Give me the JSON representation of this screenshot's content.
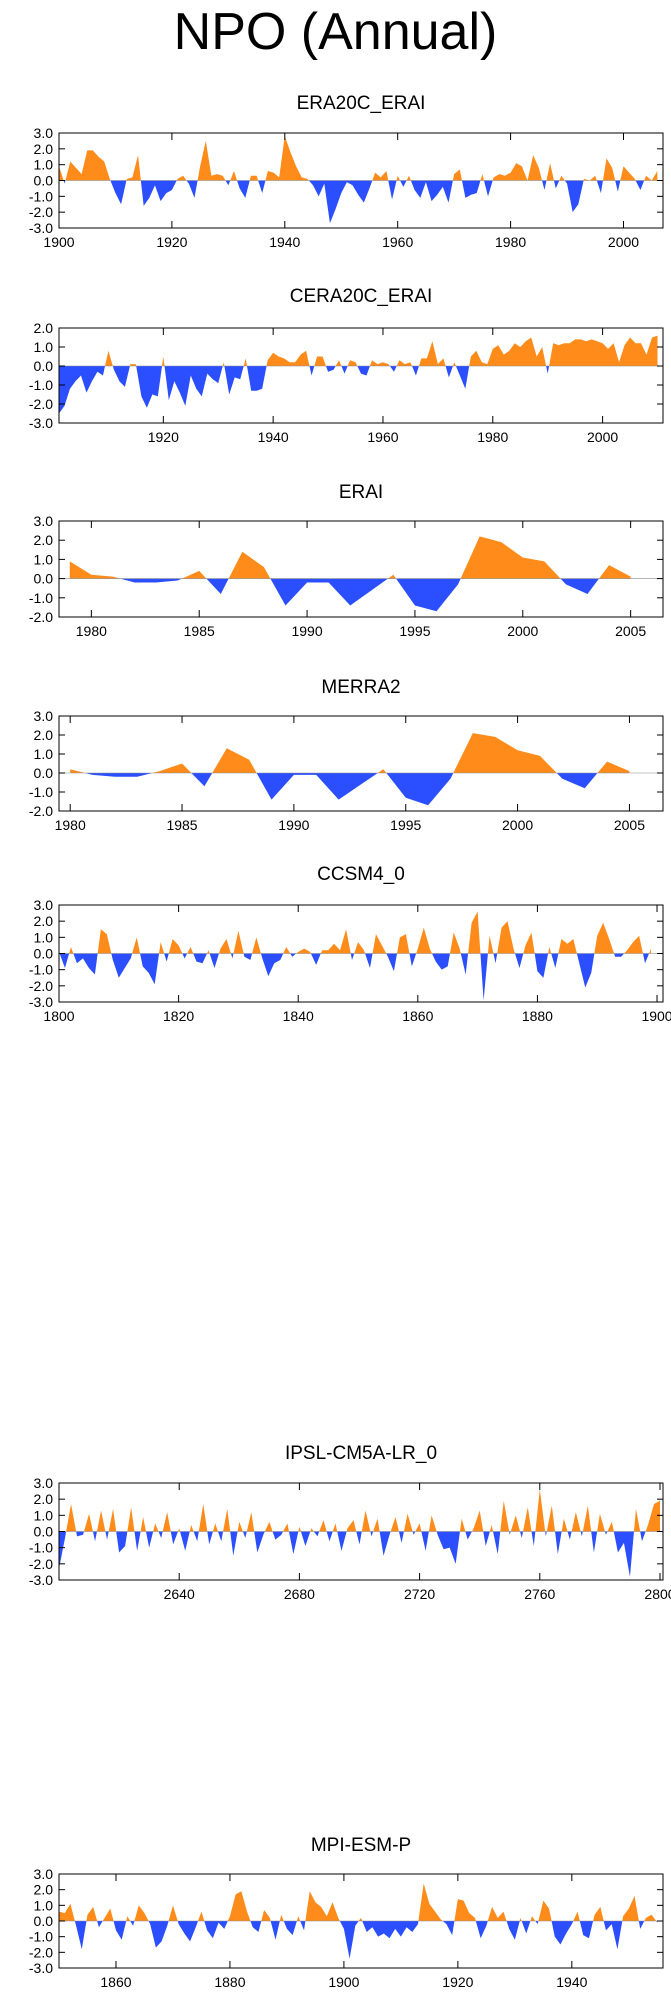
{
  "title": "NPO (Annual)",
  "colors": {
    "positive": "#ff8c1a",
    "negative": "#2b4fff",
    "axis": "#000000"
  },
  "chart_data": [
    {
      "type": "area",
      "title": "ERA20C_ERAI",
      "ylim": [
        -3.0,
        3.0
      ],
      "yticks": [
        "3.0",
        "2.0",
        "1.0",
        "0.0",
        "-1.0",
        "-2.0",
        "-3.0"
      ],
      "xlim": [
        1900,
        2007
      ],
      "xticks": [
        1900,
        1920,
        1940,
        1960,
        1980,
        2000
      ],
      "x": [
        1900,
        1901,
        1902,
        1903,
        1904,
        1905,
        1906,
        1907,
        1908,
        1909,
        1910,
        1911,
        1912,
        1913,
        1914,
        1915,
        1916,
        1917,
        1918,
        1919,
        1920,
        1921,
        1922,
        1923,
        1924,
        1925,
        1926,
        1927,
        1928,
        1929,
        1930,
        1931,
        1932,
        1933,
        1934,
        1935,
        1936,
        1937,
        1938,
        1939,
        1940,
        1941,
        1942,
        1943,
        1944,
        1945,
        1946,
        1947,
        1948,
        1949,
        1950,
        1951,
        1952,
        1953,
        1954,
        1955,
        1956,
        1957,
        1958,
        1959,
        1960,
        1961,
        1962,
        1963,
        1964,
        1965,
        1966,
        1967,
        1968,
        1969,
        1970,
        1971,
        1972,
        1973,
        1974,
        1975,
        1976,
        1977,
        1978,
        1979,
        1980,
        1981,
        1982,
        1983,
        1984,
        1985,
        1986,
        1987,
        1988,
        1989,
        1990,
        1991,
        1992,
        1993,
        1994,
        1995,
        1996,
        1997,
        1998,
        1999,
        2000,
        2001,
        2002,
        2003,
        2004,
        2005,
        2006
      ],
      "values": [
        0.9,
        -0.2,
        1.2,
        0.8,
        0.4,
        1.9,
        1.9,
        1.5,
        1.2,
        0.1,
        -0.8,
        -1.5,
        0.1,
        0.2,
        1.6,
        -1.6,
        -1.1,
        -0.3,
        -1.3,
        -0.8,
        -0.6,
        0.1,
        0.3,
        -0.2,
        -1.1,
        0.9,
        2.5,
        0.3,
        0.4,
        0.3,
        -0.3,
        0.6,
        -0.5,
        -1.1,
        0.3,
        0.3,
        -0.8,
        0.6,
        0.5,
        0.2,
        2.8,
        1.8,
        0.9,
        0.2,
        0.1,
        -0.3,
        -1.0,
        -0.2,
        -2.7,
        -1.8,
        -0.8,
        -0.1,
        -0.3,
        -0.9,
        -1.4,
        -0.5,
        0.5,
        0.2,
        0.6,
        -1.2,
        0.3,
        -0.4,
        0.3,
        -0.6,
        -1.1,
        -0.1,
        -1.3,
        -0.9,
        -0.4,
        -1.4,
        0.4,
        0.7,
        -1.1,
        -0.9,
        -0.8,
        0.4,
        -1.0,
        0.2,
        0.4,
        0.3,
        0.5,
        1.1,
        0.9,
        0.0,
        1.6,
        0.8,
        -0.6,
        1.1,
        -0.5,
        0.3,
        -0.2,
        -2.0,
        -1.5,
        0.1,
        0.0,
        0.3,
        -0.8,
        1.4,
        0.8,
        -0.7,
        0.9,
        0.5,
        0.1,
        -0.6,
        0.3,
        0.0,
        0.6
      ]
    },
    {
      "type": "area",
      "title": "CERA20C_ERAI",
      "ylim": [
        -3.0,
        2.0
      ],
      "yticks": [
        "2.0",
        "1.0",
        "0.0",
        "-1.0",
        "-2.0",
        "-3.0"
      ],
      "xlim": [
        1901,
        2011
      ],
      "xticks": [
        1920,
        1940,
        1960,
        1980,
        2000
      ],
      "x": [
        1901,
        1902,
        1903,
        1904,
        1905,
        1906,
        1907,
        1908,
        1909,
        1910,
        1911,
        1912,
        1913,
        1914,
        1915,
        1916,
        1917,
        1918,
        1919,
        1920,
        1921,
        1922,
        1923,
        1924,
        1925,
        1926,
        1927,
        1928,
        1929,
        1930,
        1931,
        1932,
        1933,
        1934,
        1935,
        1936,
        1937,
        1938,
        1939,
        1940,
        1941,
        1942,
        1943,
        1944,
        1945,
        1946,
        1947,
        1948,
        1949,
        1950,
        1951,
        1952,
        1953,
        1954,
        1955,
        1956,
        1957,
        1958,
        1959,
        1960,
        1961,
        1962,
        1963,
        1964,
        1965,
        1966,
        1967,
        1968,
        1969,
        1970,
        1971,
        1972,
        1973,
        1974,
        1975,
        1976,
        1977,
        1978,
        1979,
        1980,
        1981,
        1982,
        1983,
        1984,
        1985,
        1986,
        1987,
        1988,
        1989,
        1990,
        1991,
        1992,
        1993,
        1994,
        1995,
        1996,
        1997,
        1998,
        1999,
        2000,
        2001,
        2002,
        2003,
        2004,
        2005,
        2006,
        2007,
        2008,
        2009,
        2010
      ],
      "values": [
        -2.5,
        -2.1,
        -1.2,
        -0.8,
        -0.5,
        -1.4,
        -0.8,
        -0.3,
        -0.5,
        0.8,
        -0.2,
        -0.8,
        -1.1,
        0.1,
        0.1,
        -1.6,
        -2.2,
        -1.5,
        -1.6,
        0.5,
        -1.8,
        -0.8,
        -1.4,
        -2.1,
        -0.5,
        -1.2,
        -1.6,
        -0.4,
        -0.7,
        -0.9,
        0.2,
        -1.5,
        -0.6,
        -0.7,
        0.4,
        -1.3,
        -1.3,
        -1.2,
        0.3,
        0.7,
        0.5,
        0.4,
        0.2,
        0.2,
        0.6,
        0.8,
        -0.5,
        0.5,
        0.5,
        -0.3,
        -0.2,
        0.3,
        -0.4,
        0.3,
        0.2,
        -0.4,
        -0.5,
        0.3,
        0.1,
        0.2,
        0.1,
        -0.3,
        0.3,
        0.1,
        0.2,
        -0.5,
        0.4,
        0.4,
        1.3,
        0.1,
        0.4,
        -0.6,
        0.2,
        -0.5,
        -1.2,
        0.5,
        0.8,
        0.2,
        0.1,
        0.9,
        1.1,
        0.6,
        0.8,
        1.2,
        1.0,
        1.3,
        1.5,
        0.5,
        1.0,
        -0.4,
        1.2,
        1.1,
        1.2,
        1.2,
        1.4,
        1.4,
        1.3,
        1.4,
        1.3,
        1.2,
        0.9,
        1.2,
        0.2,
        1.1,
        1.5,
        1.2,
        1.2,
        0.6,
        1.5,
        1.6
      ]
    },
    {
      "type": "area",
      "title": "ERAI",
      "ylim": [
        -2.0,
        3.0
      ],
      "yticks": [
        "3.0",
        "2.0",
        "1.0",
        "0.0",
        "-1.0",
        "-2.0"
      ],
      "xlim": [
        1978.5,
        2006.5
      ],
      "xticks": [
        1980,
        1985,
        1990,
        1995,
        2000,
        2005
      ],
      "x": [
        1979,
        1980,
        1981,
        1982,
        1983,
        1984,
        1985,
        1986,
        1987,
        1988,
        1989,
        1990,
        1991,
        1992,
        1993,
        1994,
        1995,
        1996,
        1997,
        1998,
        1999,
        2000,
        2001,
        2002,
        2003,
        2004,
        2005
      ],
      "values": [
        0.9,
        0.2,
        0.1,
        -0.2,
        -0.2,
        -0.1,
        0.4,
        -0.8,
        1.4,
        0.6,
        -1.4,
        -0.2,
        -0.2,
        -1.4,
        -0.6,
        0.2,
        -1.4,
        -1.7,
        -0.3,
        2.2,
        1.9,
        1.1,
        0.9,
        -0.3,
        -0.8,
        0.7,
        0.1
      ]
    },
    {
      "type": "area",
      "title": "MERRA2",
      "ylim": [
        -2.0,
        3.0
      ],
      "yticks": [
        "3.0",
        "2.0",
        "1.0",
        "0.0",
        "-1.0",
        "-2.0"
      ],
      "xlim": [
        1979.5,
        2006.5
      ],
      "xticks": [
        1980,
        1985,
        1990,
        1995,
        2000,
        2005
      ],
      "x": [
        1980,
        1981,
        1982,
        1983,
        1984,
        1985,
        1986,
        1987,
        1988,
        1989,
        1990,
        1991,
        1992,
        1993,
        1994,
        1995,
        1996,
        1997,
        1998,
        1999,
        2000,
        2001,
        2002,
        2003,
        2004,
        2005
      ],
      "values": [
        0.2,
        -0.1,
        -0.2,
        -0.2,
        0.1,
        0.5,
        -0.7,
        1.3,
        0.7,
        -1.4,
        -0.1,
        -0.1,
        -1.4,
        -0.6,
        0.2,
        -1.3,
        -1.7,
        -0.3,
        2.1,
        1.9,
        1.2,
        0.9,
        -0.3,
        -0.8,
        0.6,
        0.1
      ]
    },
    {
      "type": "area",
      "title": "CCSM4_0",
      "ylim": [
        -3.0,
        3.0
      ],
      "yticks": [
        "3.0",
        "2.0",
        "1.0",
        "0.0",
        "-1.0",
        "-2.0",
        "-3.0"
      ],
      "xlim": [
        1800,
        1901
      ],
      "xticks": [
        1800,
        1820,
        1840,
        1860,
        1880,
        1900
      ],
      "x": [
        1800,
        1801,
        1802,
        1803,
        1804,
        1805,
        1806,
        1807,
        1808,
        1809,
        1810,
        1811,
        1812,
        1813,
        1814,
        1815,
        1816,
        1817,
        1818,
        1819,
        1820,
        1821,
        1822,
        1823,
        1824,
        1825,
        1826,
        1827,
        1828,
        1829,
        1830,
        1831,
        1832,
        1833,
        1834,
        1835,
        1836,
        1837,
        1838,
        1839,
        1840,
        1841,
        1842,
        1843,
        1844,
        1845,
        1846,
        1847,
        1848,
        1849,
        1850,
        1851,
        1852,
        1853,
        1854,
        1855,
        1856,
        1857,
        1858,
        1859,
        1860,
        1861,
        1862,
        1863,
        1864,
        1865,
        1866,
        1867,
        1868,
        1869,
        1870,
        1871,
        1872,
        1873,
        1874,
        1875,
        1876,
        1877,
        1878,
        1879,
        1880,
        1881,
        1882,
        1883,
        1884,
        1885,
        1886,
        1887,
        1888,
        1889,
        1890,
        1891,
        1892,
        1893,
        1894,
        1895,
        1896,
        1897,
        1898,
        1899
      ],
      "values": [
        0.1,
        -0.9,
        0.4,
        -0.6,
        -0.3,
        -0.9,
        -1.3,
        1.5,
        1.2,
        -0.4,
        -1.5,
        -0.9,
        -0.3,
        1.0,
        -0.8,
        -1.2,
        -1.9,
        0.7,
        -0.5,
        0.9,
        0.5,
        -0.3,
        0.4,
        -0.5,
        -0.6,
        0.2,
        -0.9,
        0.3,
        0.9,
        -0.3,
        1.4,
        -0.2,
        -0.4,
        1.0,
        -0.3,
        -1.4,
        -0.6,
        -0.4,
        0.4,
        -0.2,
        0.1,
        0.3,
        0.1,
        -0.7,
        0.2,
        0.2,
        0.6,
        0.2,
        1.5,
        -0.4,
        0.7,
        0.2,
        -0.9,
        1.2,
        0.5,
        -0.2,
        -1.1,
        1.0,
        1.2,
        -0.8,
        0.3,
        1.6,
        0.3,
        -0.5,
        -1.0,
        -0.8,
        1.3,
        0.3,
        -1.3,
        1.9,
        2.6,
        -2.9,
        1.1,
        -0.6,
        1.6,
        2.0,
        0.3,
        -0.9,
        0.5,
        1.3,
        -1.1,
        -1.5,
        0.4,
        -0.9,
        0.9,
        0.6,
        0.9,
        -0.6,
        -2.1,
        -1.2,
        1.1,
        1.9,
        0.9,
        -0.2,
        -0.2,
        0.2,
        0.7,
        1.1,
        -0.6,
        0.3
      ]
    },
    {
      "type": "area",
      "title": "IPSL-CM5A-LR_0",
      "ylim": [
        -3.0,
        3.0
      ],
      "yticks": [
        "3.0",
        "2.0",
        "1.0",
        "0.0",
        "-1.0",
        "-2.0",
        "-3.0"
      ],
      "xlim": [
        2600,
        2801
      ],
      "xticks": [
        2640,
        2680,
        2720,
        2760,
        2800
      ],
      "x": [
        2600,
        2602,
        2604,
        2606,
        2608,
        2610,
        2612,
        2614,
        2616,
        2618,
        2620,
        2622,
        2624,
        2626,
        2628,
        2630,
        2632,
        2634,
        2636,
        2638,
        2640,
        2642,
        2644,
        2646,
        2648,
        2650,
        2652,
        2654,
        2656,
        2658,
        2660,
        2662,
        2664,
        2666,
        2668,
        2670,
        2672,
        2674,
        2676,
        2678,
        2680,
        2682,
        2684,
        2686,
        2688,
        2690,
        2692,
        2694,
        2696,
        2698,
        2700,
        2702,
        2704,
        2706,
        2708,
        2710,
        2712,
        2714,
        2716,
        2718,
        2720,
        2722,
        2724,
        2726,
        2728,
        2730,
        2732,
        2734,
        2736,
        2738,
        2740,
        2742,
        2744,
        2746,
        2748,
        2750,
        2752,
        2754,
        2756,
        2758,
        2760,
        2762,
        2764,
        2766,
        2768,
        2770,
        2772,
        2774,
        2776,
        2778,
        2780,
        2782,
        2784,
        2786,
        2788,
        2790,
        2792,
        2794,
        2796,
        2798,
        2800
      ],
      "values": [
        -2.3,
        -0.4,
        1.7,
        -0.3,
        -0.2,
        1.1,
        -0.6,
        1.3,
        -0.5,
        1.4,
        -1.3,
        -0.9,
        1.5,
        -1.2,
        0.9,
        -1.0,
        0.5,
        -0.4,
        1.2,
        -0.8,
        0.2,
        -1.2,
        0.4,
        -0.6,
        1.7,
        -0.8,
        0.5,
        -0.6,
        1.4,
        -1.5,
        0.6,
        -0.4,
        1.2,
        -1.3,
        -0.2,
        0.6,
        -0.5,
        -0.2,
        0.5,
        -1.4,
        0.3,
        -0.9,
        0.2,
        -0.3,
        0.7,
        -0.6,
        0.5,
        -1.2,
        0.2,
        0.7,
        -0.8,
        1.3,
        -0.3,
        0.8,
        -1.5,
        -0.2,
        0.9,
        -0.7,
        1.1,
        -0.2,
        0.5,
        -1.2,
        1.0,
        -0.2,
        -1.1,
        -1.0,
        -2.0,
        0.8,
        -0.5,
        0.2,
        1.3,
        -0.9,
        0.4,
        -1.4,
        1.9,
        -0.2,
        1.0,
        -0.4,
        1.5,
        -0.9,
        2.6,
        -0.3,
        1.6,
        -1.4,
        0.8,
        -0.5,
        1.2,
        -0.3,
        1.6,
        -1.3,
        1.1,
        -0.2,
        0.6,
        -1.3,
        -0.7,
        -2.8,
        1.4,
        -0.6,
        0.4,
        1.7,
        1.9
      ]
    },
    {
      "type": "area",
      "title": "MPI-ESM-P",
      "ylim": [
        -3.0,
        3.0
      ],
      "yticks": [
        "3.0",
        "2.0",
        "1.0",
        "0.0",
        "-1.0",
        "-2.0",
        "-3.0"
      ],
      "xlim": [
        1850,
        1956
      ],
      "xticks": [
        1860,
        1880,
        1900,
        1920,
        1940
      ],
      "x": [
        1850,
        1851,
        1852,
        1853,
        1854,
        1855,
        1856,
        1857,
        1858,
        1859,
        1860,
        1861,
        1862,
        1863,
        1864,
        1865,
        1866,
        1867,
        1868,
        1869,
        1870,
        1871,
        1872,
        1873,
        1874,
        1875,
        1876,
        1877,
        1878,
        1879,
        1880,
        1881,
        1882,
        1883,
        1884,
        1885,
        1886,
        1887,
        1888,
        1889,
        1890,
        1891,
        1892,
        1893,
        1894,
        1895,
        1896,
        1897,
        1898,
        1899,
        1900,
        1901,
        1902,
        1903,
        1904,
        1905,
        1906,
        1907,
        1908,
        1909,
        1910,
        1911,
        1912,
        1913,
        1914,
        1915,
        1916,
        1917,
        1918,
        1919,
        1920,
        1921,
        1922,
        1923,
        1924,
        1925,
        1926,
        1927,
        1928,
        1929,
        1930,
        1931,
        1932,
        1933,
        1934,
        1935,
        1936,
        1937,
        1938,
        1939,
        1940,
        1941,
        1942,
        1943,
        1944,
        1945,
        1946,
        1947,
        1948,
        1949,
        1950,
        1951,
        1952,
        1953,
        1954,
        1955
      ],
      "values": [
        0.6,
        0.5,
        1.1,
        -0.3,
        -1.8,
        0.4,
        0.9,
        -0.4,
        0.2,
        0.8,
        -0.6,
        -1.2,
        0.3,
        -0.3,
        1.0,
        0.5,
        -0.2,
        -1.7,
        -1.3,
        -0.3,
        1.0,
        -0.2,
        -0.8,
        -1.3,
        -0.4,
        0.6,
        -0.6,
        -1.1,
        -0.1,
        -0.5,
        0.3,
        1.7,
        1.9,
        0.6,
        -0.4,
        -0.7,
        0.7,
        0.2,
        -1.2,
        0.4,
        -0.5,
        -0.9,
        0.3,
        -0.6,
        1.9,
        1.2,
        0.9,
        0.3,
        1.2,
        0.2,
        -0.5,
        -2.4,
        -0.3,
        0.2,
        -0.7,
        -0.4,
        -1.0,
        -0.8,
        -1.1,
        -0.5,
        -1.0,
        -0.4,
        -0.7,
        -0.2,
        2.4,
        1.1,
        0.6,
        0.1,
        -0.2,
        -0.9,
        1.4,
        1.3,
        0.5,
        0.2,
        -1.1,
        -0.3,
        0.9,
        0.2,
        0.6,
        -0.5,
        -1.2,
        0.2,
        -0.8,
        0.3,
        -0.2,
        1.3,
        0.8,
        -1.0,
        -1.5,
        -0.8,
        -0.2,
        0.6,
        -0.9,
        -1.1,
        0.4,
        0.9,
        -0.6,
        -0.2,
        -1.8,
        0.3,
        0.8,
        1.6,
        -0.5,
        0.2,
        0.4,
        -0.1
      ]
    }
  ]
}
